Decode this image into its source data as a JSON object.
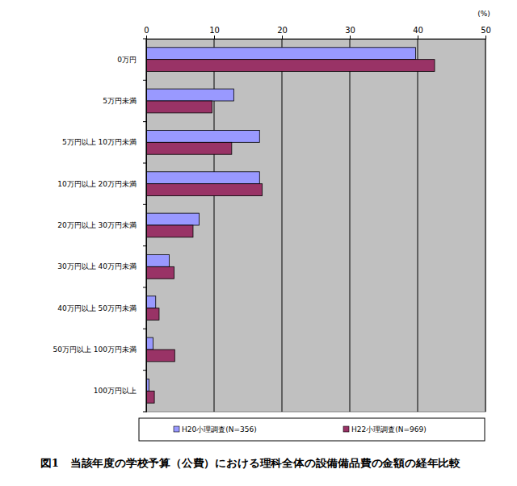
{
  "chart_data": {
    "type": "bar",
    "orientation": "horizontal",
    "title": "図1　当該年度の学校予算（公費）における理科全体の設備備品費の金額の経年比較",
    "x_label": "(%)",
    "categories": [
      "0万円",
      "5万円未満",
      "5万円以上 10万円未満",
      "10万円以上 20万円未満",
      "20万円以上 30万円未満",
      "30万円以上 40万円未満",
      "40万円以上 50万円未満",
      "50万円以上 100万円未満",
      "100万円以上"
    ],
    "series": [
      {
        "name": "H20小理調査(N=356)",
        "color": "#9999ff",
        "values": [
          39.7,
          12.9,
          16.7,
          16.7,
          7.8,
          3.4,
          1.4,
          1.0,
          0.4
        ]
      },
      {
        "name": "H22小理調査(N=969)",
        "color": "#993366",
        "values": [
          42.5,
          9.7,
          12.6,
          17.1,
          6.9,
          4.1,
          1.9,
          4.2,
          1.2
        ]
      }
    ],
    "xlim": [
      0,
      50
    ],
    "xticks": [
      0,
      10,
      20,
      30,
      40,
      50
    ],
    "grid": true,
    "legend": "bottom"
  }
}
